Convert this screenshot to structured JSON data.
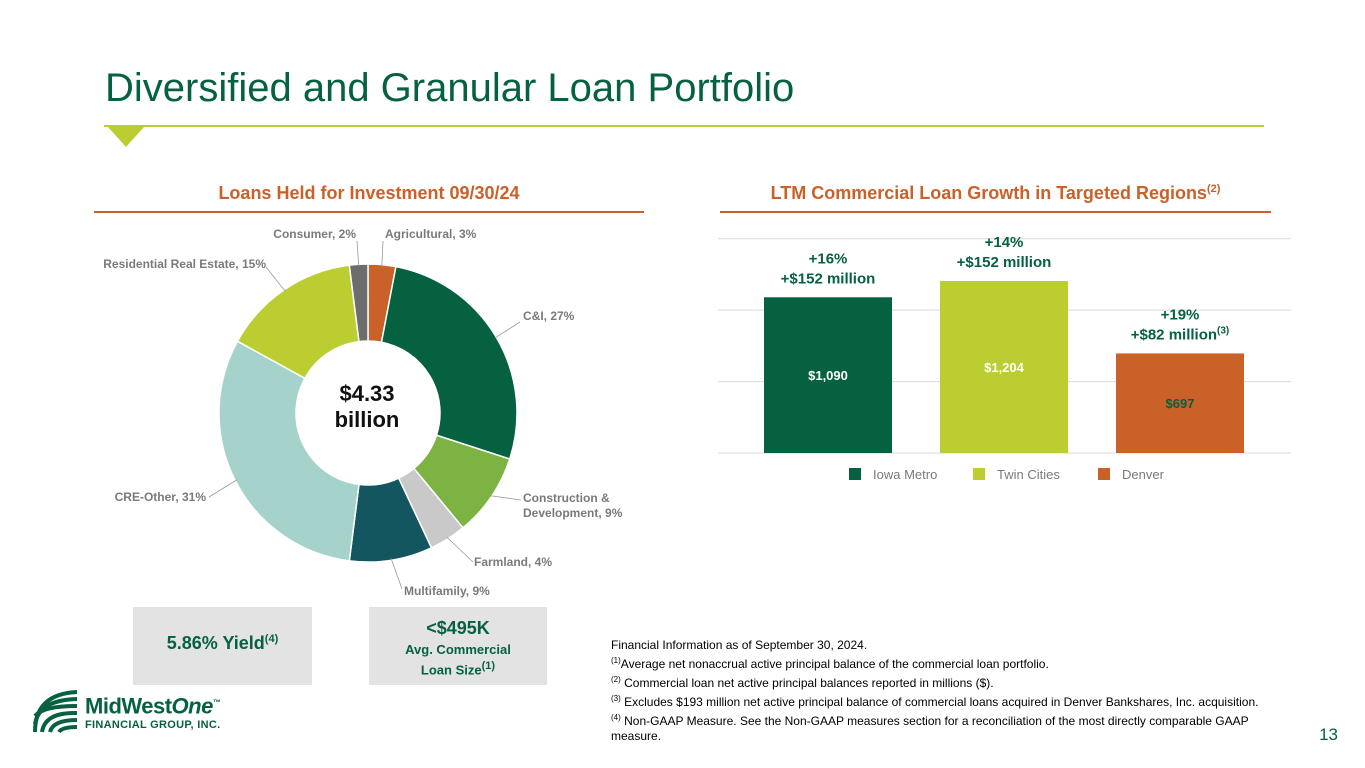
{
  "slide": {
    "title": "Diversified and Granular Loan Portfolio",
    "page_number": "13"
  },
  "colors": {
    "brand_green": "#05613f",
    "lime": "#bccd32",
    "orange": "#c96128",
    "light_green": "#7cb342",
    "light_gray": "#c9c9c9",
    "teal": "#13565f",
    "mint": "#a5d3cb",
    "dark_gray": "#6d6d6d"
  },
  "donut": {
    "heading": "Loans Held for Investment 09/30/24",
    "center_value": "$4.33",
    "center_unit": "billion"
  },
  "bars": {
    "heading": "LTM Commercial Loan Growth in Targeted Regions",
    "heading_note": "(2)"
  },
  "chart_data": [
    {
      "type": "pie",
      "title": "Loans Held for Investment 09/30/24",
      "center_label": "$4.33 billion",
      "slices": [
        {
          "name": "Agricultural",
          "value": 3,
          "label": "Agricultural, 3%",
          "color": "#c96128"
        },
        {
          "name": "C&I",
          "value": 27,
          "label": "C&I, 27%",
          "color": "#05613f"
        },
        {
          "name": "Construction & Development",
          "value": 9,
          "label_lines": [
            "Construction &",
            "Development, 9%"
          ],
          "color": "#7cb342"
        },
        {
          "name": "Farmland",
          "value": 4,
          "label": "Farmland, 4%",
          "color": "#c9c9c9"
        },
        {
          "name": "Multifamily",
          "value": 9,
          "label": "Multifamily, 9%",
          "color": "#13565f"
        },
        {
          "name": "CRE-Other",
          "value": 31,
          "label": "CRE-Other, 31%",
          "color": "#a5d3cb"
        },
        {
          "name": "Residential Real Estate",
          "value": 15,
          "label": "Residential Real Estate, 15%",
          "color": "#bccd32"
        },
        {
          "name": "Consumer",
          "value": 2,
          "label": "Consumer, 2%",
          "color": "#6d6d6d"
        }
      ]
    },
    {
      "type": "bar",
      "title": "LTM Commercial Loan Growth in Targeted Regions",
      "categories": [
        "Iowa Metro",
        "Twin Cities",
        "Denver"
      ],
      "values": [
        1090,
        1204,
        697
      ],
      "value_labels": [
        "$1,090",
        "$1,204",
        "$697"
      ],
      "growth_pct": [
        "+16%",
        "+14%",
        "+19%"
      ],
      "growth_amount": [
        "+$152 million",
        "+$152 million",
        "+$82 million"
      ],
      "growth_notes": [
        "",
        "",
        "(3)"
      ],
      "colors": [
        "#05613f",
        "#bccd32",
        "#c96128"
      ],
      "legend": [
        "Iowa Metro",
        "Twin Cities",
        "Denver"
      ],
      "grid": true,
      "legend_position": "bottom"
    }
  ],
  "stats": {
    "yield_text": "5.86% Yield",
    "yield_note": "(4)",
    "loan_size_value": "<$495K",
    "loan_size_line1": "Avg. Commercial",
    "loan_size_line2": "Loan Size",
    "loan_size_note": "(1)"
  },
  "footnotes": {
    "intro": "Financial Information as of September 30, 2024.",
    "items": [
      {
        "mark": "(1)",
        "text": "Average net nonaccrual active principal balance of the commercial loan portfolio."
      },
      {
        "mark": "(2)",
        "text": " Commercial loan net active principal balances reported in millions ($)."
      },
      {
        "mark": "(3)",
        "text": " Excludes $193 million net active principal balance of commercial loans acquired in Denver Bankshares, Inc. acquisition."
      },
      {
        "mark": "(4)",
        "text": " Non-GAAP Measure. See the Non-GAAP measures section for a reconciliation of the most directly comparable GAAP measure."
      }
    ]
  },
  "logo": {
    "name_part1": "MidWest",
    "name_part2": "One",
    "trademark": "™",
    "subtitle": "FINANCIAL GROUP, INC."
  }
}
